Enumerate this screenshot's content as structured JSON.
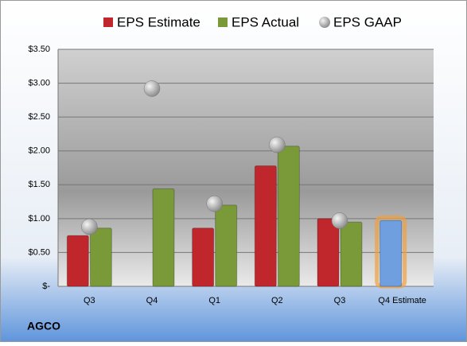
{
  "chart_data": {
    "type": "bar",
    "company": "AGCO",
    "categories": [
      "Q3",
      "Q4",
      "Q1",
      "Q2",
      "Q3",
      "Q4 Estimate"
    ],
    "series": [
      {
        "name": "EPS Estimate",
        "color": "#c0272d",
        "values": [
          0.75,
          null,
          0.86,
          1.78,
          1.0,
          0.97
        ],
        "colors": [
          "#c0272d",
          "#c0272d",
          "#c0272d",
          "#c0272d",
          "#c0272d",
          "#6f9fdf"
        ]
      },
      {
        "name": "EPS Actual",
        "color": "#7a9a3a",
        "values": [
          0.86,
          1.44,
          1.2,
          2.07,
          0.95,
          null
        ]
      },
      {
        "name": "EPS GAAP",
        "color": "#b8b8b8",
        "marker": "circle",
        "values": [
          0.88,
          2.92,
          1.22,
          2.09,
          0.97,
          null
        ]
      }
    ],
    "ylim": [
      0,
      3.5
    ],
    "yticks": [
      {
        "value": 0,
        "label": "$-"
      },
      {
        "value": 0.5,
        "label": "$0.50"
      },
      {
        "value": 1,
        "label": "$1.00"
      },
      {
        "value": 1.5,
        "label": "$1.50"
      },
      {
        "value": 2,
        "label": "$2.00"
      },
      {
        "value": 2.5,
        "label": "$2.50"
      },
      {
        "value": 3,
        "label": "$3.00"
      },
      {
        "value": 3.5,
        "label": "$3.50"
      }
    ],
    "grid": true
  }
}
